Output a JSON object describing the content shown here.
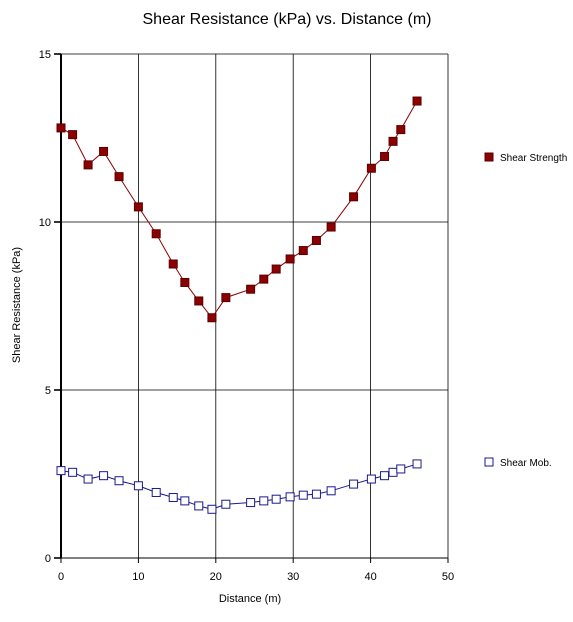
{
  "chart_data": {
    "type": "line",
    "title": "Shear Resistance (kPa) vs. Distance (m)",
    "xlabel": "Distance (m)",
    "ylabel": "Shear Resistance (kPa)",
    "xlim": [
      0,
      50
    ],
    "ylim": [
      0,
      15
    ],
    "xticks": [
      0,
      10,
      20,
      30,
      40,
      50
    ],
    "yticks": [
      0,
      5,
      10,
      15
    ],
    "grid": true,
    "legend_position": "right",
    "series": [
      {
        "name": "Shear Strength",
        "color": "#8b0000",
        "marker": "filled-square",
        "x": [
          0,
          1.5,
          3.5,
          5.5,
          7.5,
          10,
          12.3,
          14.5,
          16,
          17.8,
          19.5,
          21.3,
          24.5,
          26.2,
          27.8,
          29.6,
          31.3,
          33,
          34.9,
          37.8,
          40.1,
          41.8,
          42.9,
          43.9,
          46
        ],
        "y": [
          12.8,
          12.6,
          11.7,
          12.1,
          11.35,
          10.45,
          9.65,
          8.75,
          8.2,
          7.65,
          7.15,
          7.75,
          8.0,
          8.3,
          8.6,
          8.9,
          9.15,
          9.45,
          9.85,
          10.75,
          11.6,
          11.95,
          12.4,
          12.75,
          13.6
        ]
      },
      {
        "name": "Shear Mob.",
        "color": "#1a1a8c",
        "marker": "hollow-square",
        "x": [
          0,
          1.5,
          3.5,
          5.5,
          7.5,
          10,
          12.3,
          14.5,
          16,
          17.8,
          19.5,
          21.3,
          24.5,
          26.2,
          27.8,
          29.6,
          31.3,
          33,
          34.9,
          37.8,
          40.1,
          41.8,
          42.9,
          43.9,
          46
        ],
        "y": [
          2.6,
          2.55,
          2.35,
          2.45,
          2.3,
          2.15,
          1.95,
          1.8,
          1.7,
          1.55,
          1.45,
          1.6,
          1.65,
          1.7,
          1.75,
          1.82,
          1.87,
          1.9,
          2.0,
          2.2,
          2.35,
          2.45,
          2.55,
          2.65,
          2.8
        ]
      }
    ]
  }
}
